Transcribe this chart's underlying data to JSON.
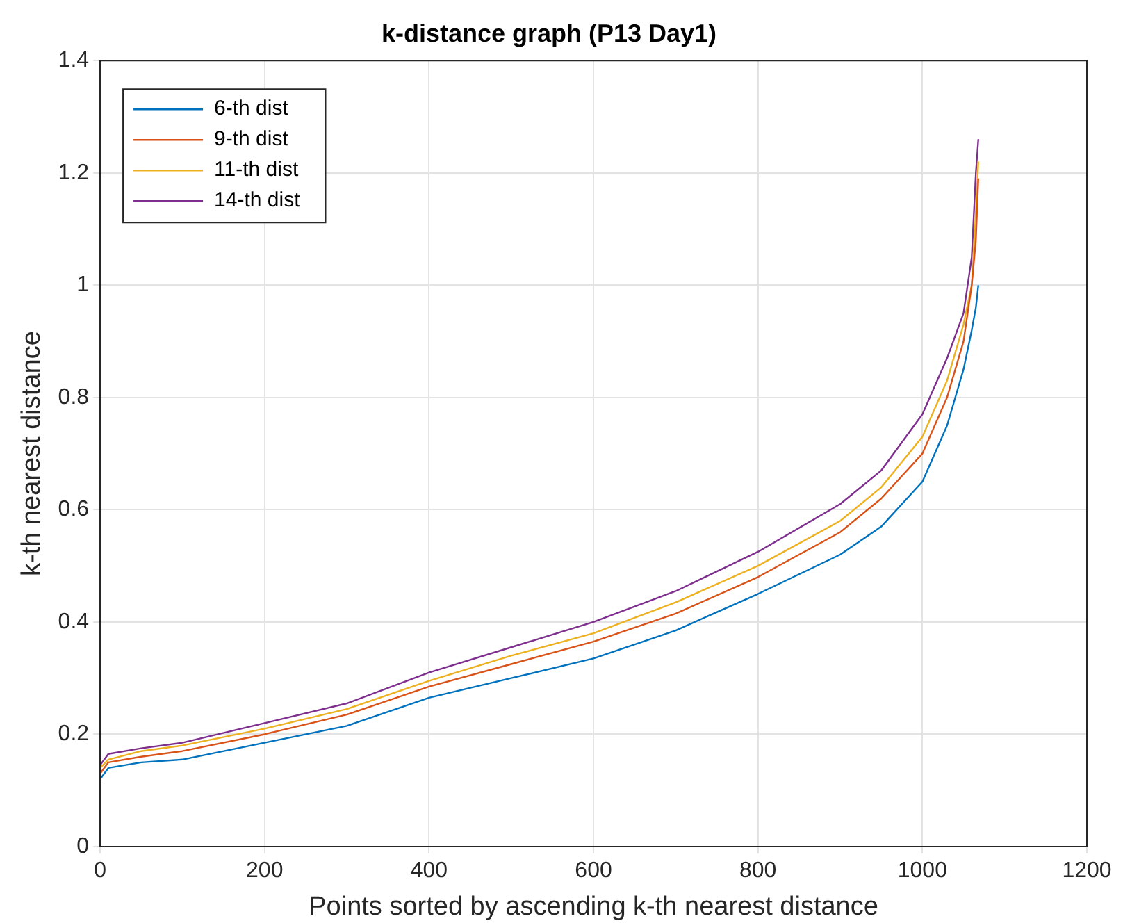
{
  "chart_data": {
    "type": "line",
    "title": "k-distance graph (P13 Day1)",
    "xlabel": "Points sorted by ascending k-th nearest distance",
    "ylabel": "k-th nearest distance",
    "xlim": [
      0,
      1200
    ],
    "xticks": [
      0,
      200,
      400,
      600,
      800,
      1000,
      1200
    ],
    "ylim": [
      0,
      1.4
    ],
    "yticks": [
      0,
      0.2,
      0.4,
      0.6,
      0.8,
      1,
      1.2,
      1.4
    ],
    "grid": true,
    "legend": "top left",
    "marker": "none",
    "line_style": "solid",
    "x": [
      0,
      10,
      50,
      100,
      200,
      300,
      400,
      500,
      600,
      700,
      800,
      900,
      950,
      1000,
      1030,
      1050,
      1060,
      1065,
      1068
    ],
    "series": [
      {
        "name": "6-th dist",
        "color": "#0072bd",
        "values": [
          0.12,
          0.14,
          0.15,
          0.155,
          0.185,
          0.215,
          0.265,
          0.3,
          0.335,
          0.385,
          0.45,
          0.52,
          0.57,
          0.65,
          0.75,
          0.85,
          0.92,
          0.96,
          1.0
        ]
      },
      {
        "name": "9-th dist",
        "color": "#d95319",
        "values": [
          0.13,
          0.15,
          0.16,
          0.17,
          0.2,
          0.235,
          0.285,
          0.325,
          0.365,
          0.415,
          0.48,
          0.56,
          0.62,
          0.7,
          0.8,
          0.9,
          1.0,
          1.08,
          1.19
        ]
      },
      {
        "name": "11-th dist",
        "color": "#edb120",
        "values": [
          0.14,
          0.155,
          0.17,
          0.18,
          0.21,
          0.245,
          0.295,
          0.34,
          0.38,
          0.435,
          0.5,
          0.58,
          0.64,
          0.73,
          0.83,
          0.93,
          1.0,
          1.13,
          1.22
        ]
      },
      {
        "name": "14-th dist",
        "color": "#7e2f8e",
        "values": [
          0.145,
          0.165,
          0.175,
          0.185,
          0.22,
          0.255,
          0.31,
          0.355,
          0.4,
          0.455,
          0.525,
          0.61,
          0.67,
          0.77,
          0.87,
          0.95,
          1.05,
          1.2,
          1.26
        ]
      }
    ]
  }
}
